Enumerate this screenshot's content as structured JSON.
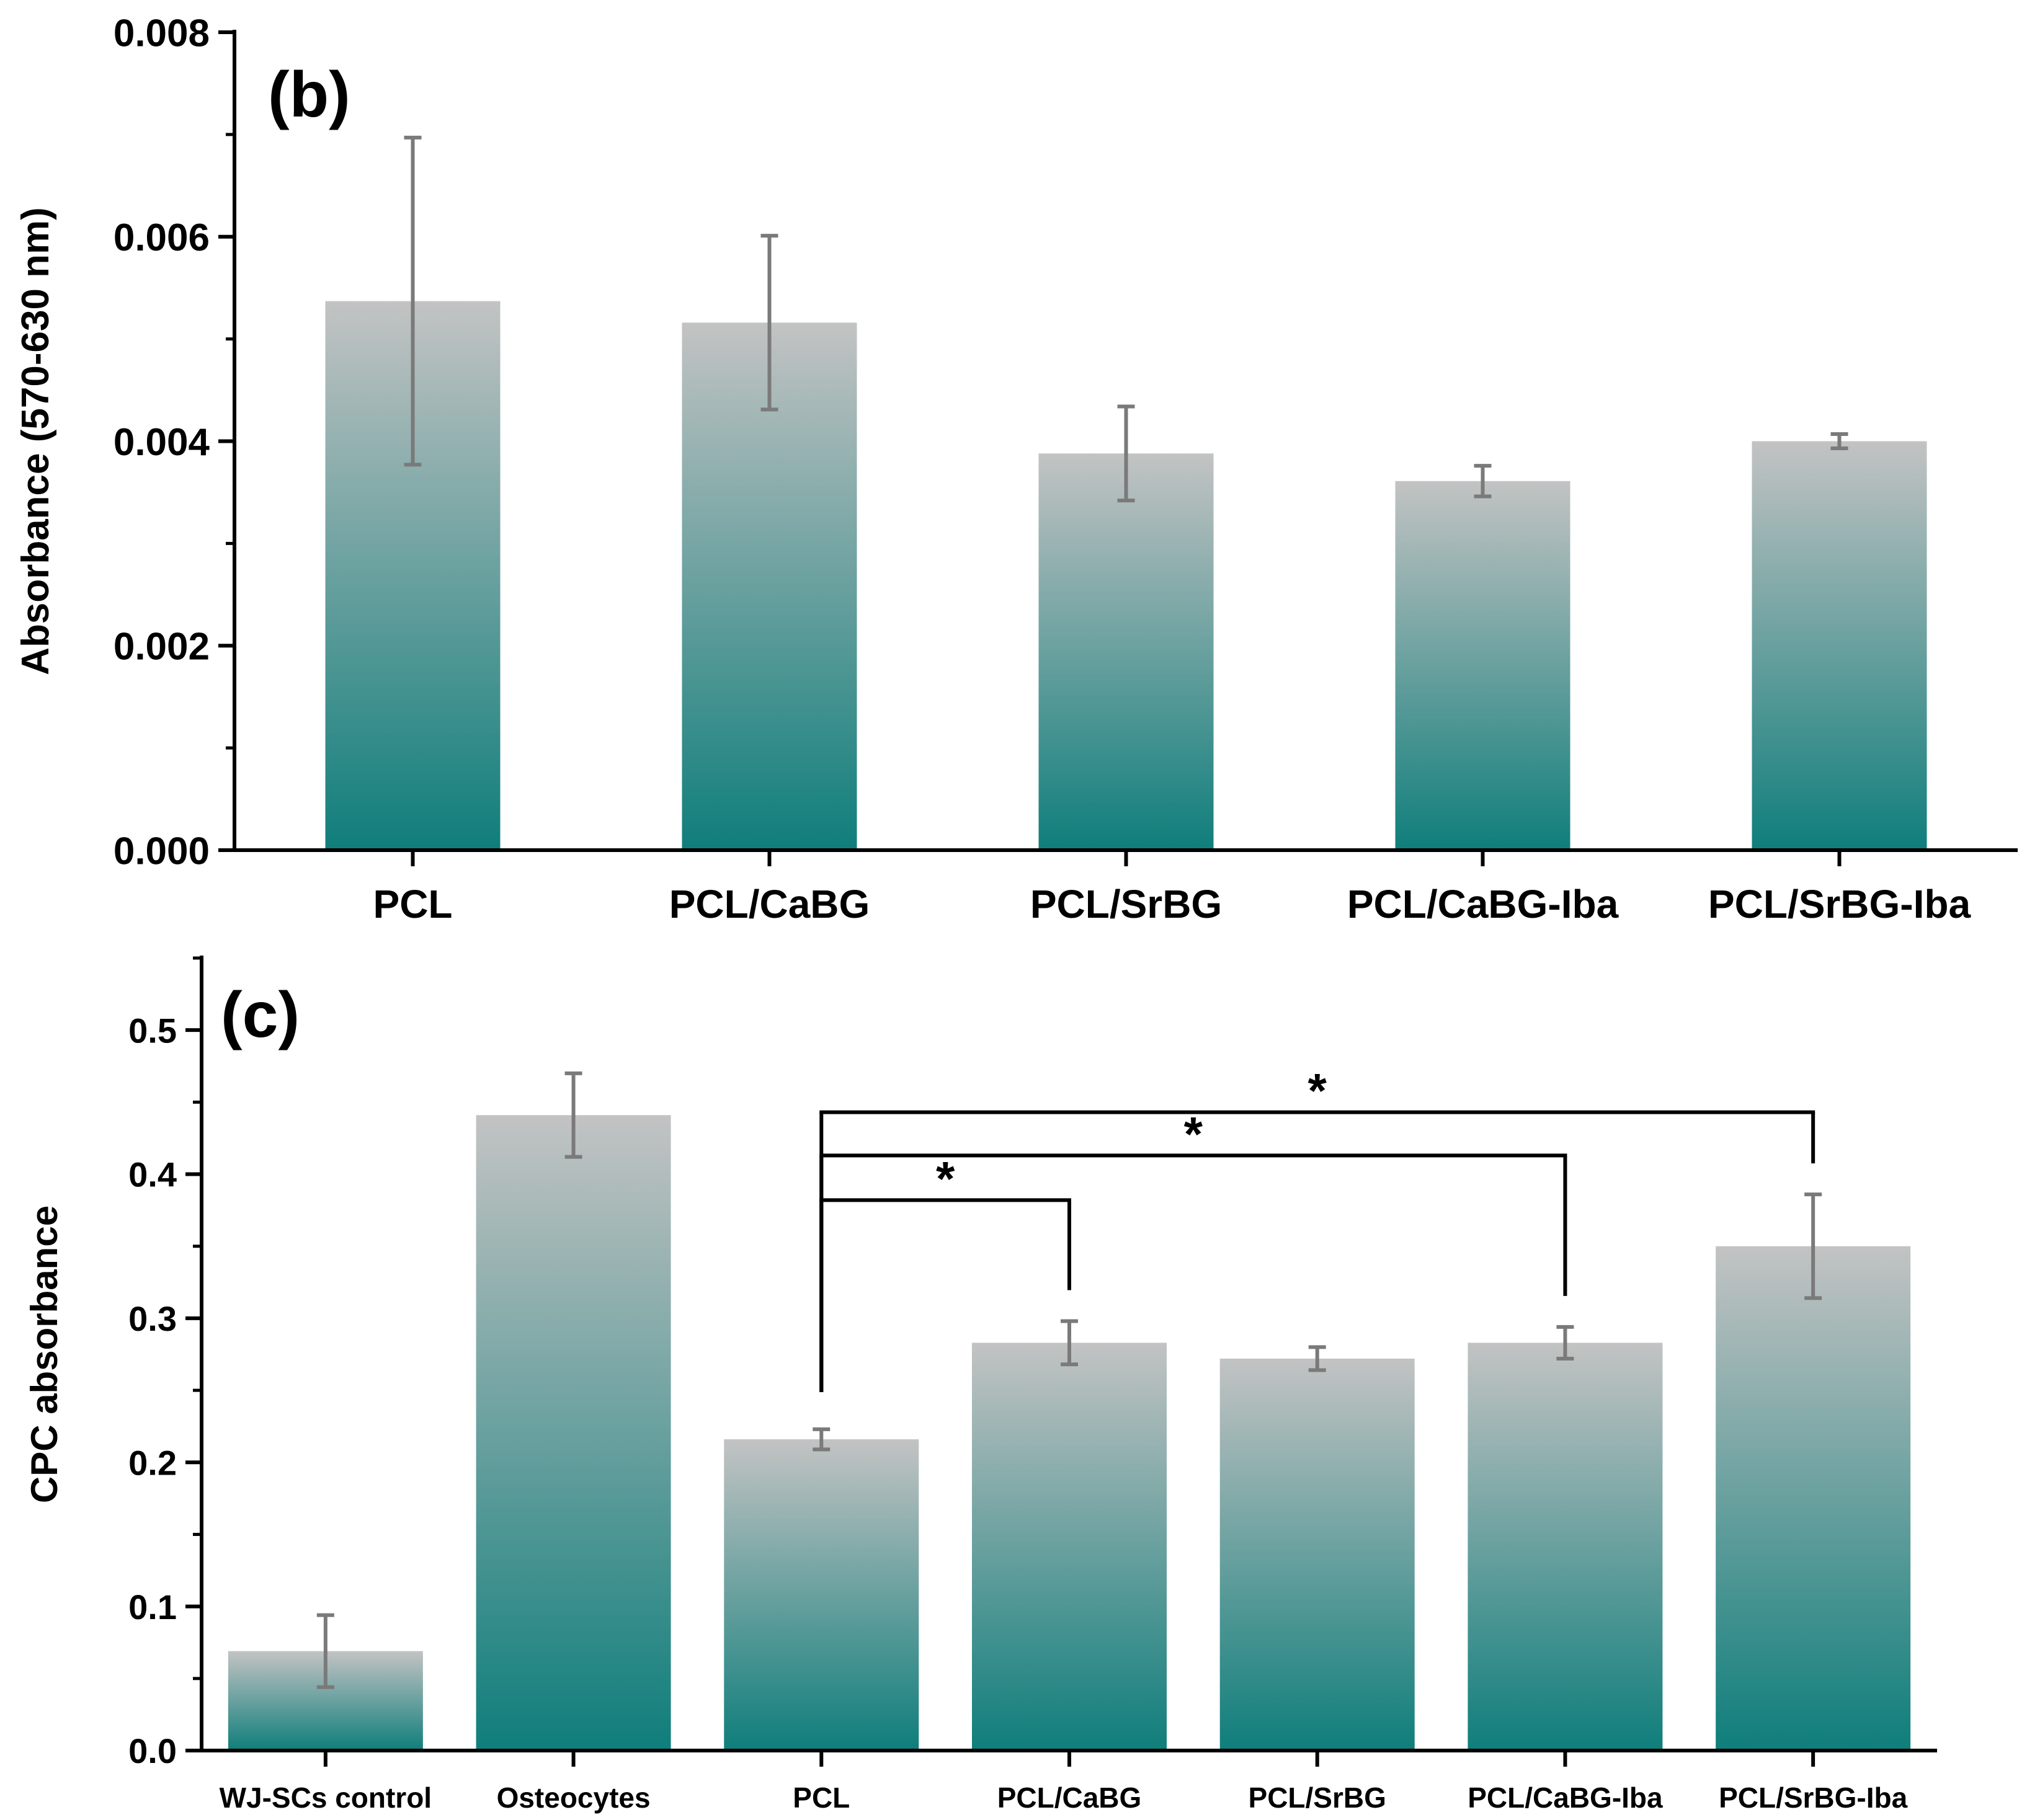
{
  "colors": {
    "bar_top": "#c3c3c3",
    "bar_bottom": "#0f7e7b",
    "error_bar": "#7a7a7a",
    "axis": "#000000",
    "text": "#000000"
  },
  "chart_data": [
    {
      "type": "bar",
      "panel_label": "(b)",
      "title": "",
      "xlabel": "",
      "ylabel": "Absorbance (570-630 nm)",
      "ylim": [
        0,
        0.008
      ],
      "yticks": [
        0.0,
        0.002,
        0.004,
        0.006,
        0.008
      ],
      "ytick_labels": [
        "0.000",
        "0.002",
        "0.004",
        "0.006",
        "0.008"
      ],
      "minor_ticks": true,
      "categories": [
        "PCL",
        "PCL/CaBG",
        "PCL/SrBG",
        "PCL/CaBG-Iba",
        "PCL/SrBG-Iba"
      ],
      "values": [
        0.00537,
        0.00516,
        0.00388,
        0.00361,
        0.004
      ],
      "errors": [
        0.0016,
        0.00085,
        0.00046,
        0.00015,
        7e-05
      ],
      "grid": false,
      "legend": "none",
      "significance": []
    },
    {
      "type": "bar",
      "panel_label": "(c)",
      "title": "",
      "xlabel": "",
      "ylabel": "CPC absorbance",
      "ylim": [
        0,
        0.55
      ],
      "yticks": [
        0.0,
        0.1,
        0.2,
        0.3,
        0.4,
        0.5
      ],
      "ytick_labels": [
        "0.0",
        "0.1",
        "0.2",
        "0.3",
        "0.4",
        "0.5"
      ],
      "minor_ticks": true,
      "categories": [
        "WJ-SCs control",
        "Osteocytes",
        "PCL",
        "PCL/CaBG",
        "PCL/SrBG",
        "PCL/CaBG-Iba",
        "PCL/SrBG-Iba"
      ],
      "values": [
        0.069,
        0.441,
        0.216,
        0.283,
        0.272,
        0.283,
        0.35
      ],
      "errors": [
        0.025,
        0.029,
        0.007,
        0.015,
        0.008,
        0.011,
        0.036
      ],
      "grid": false,
      "legend": "none",
      "significance": [
        {
          "from": "PCL",
          "to": "PCL/CaBG",
          "label": "*",
          "level": 0.382
        },
        {
          "from": "PCL",
          "to": "PCL/CaBG-Iba",
          "label": "*",
          "level": 0.413
        },
        {
          "from": "PCL",
          "to": "PCL/SrBG-Iba",
          "label": "*",
          "level": 0.443
        }
      ]
    }
  ]
}
